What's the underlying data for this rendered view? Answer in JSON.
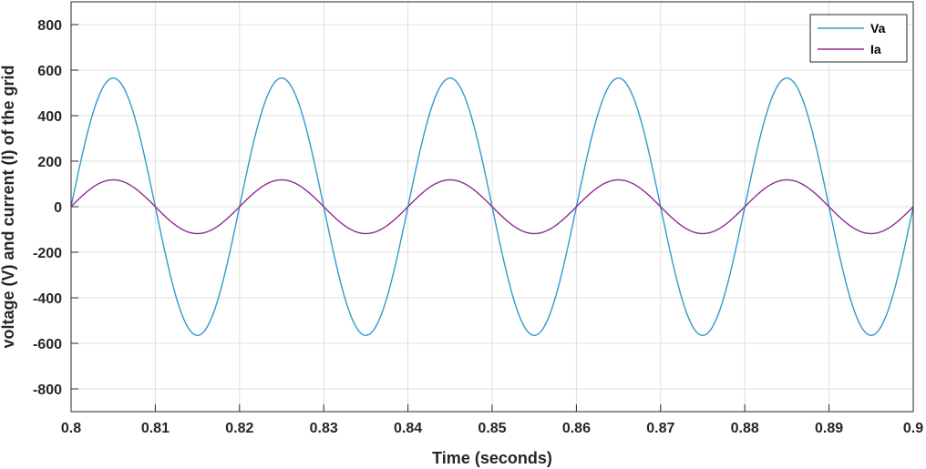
{
  "chart_data": {
    "type": "line",
    "xlabel": "Time (seconds)",
    "ylabel": "voltage (V)  and current  (I) of the grid",
    "xlim": [
      0.8,
      0.9
    ],
    "ylim": [
      -900,
      900
    ],
    "x_ticks": [
      "0.8",
      "0.81",
      "0.82",
      "0.83",
      "0.84",
      "0.85",
      "0.86",
      "0.87",
      "0.88",
      "0.89",
      "0.9"
    ],
    "y_ticks": [
      "800",
      "600",
      "400",
      "200",
      "0",
      "-200",
      "-400",
      "-600",
      "-800"
    ],
    "grid": true,
    "legend_position": "top-right",
    "frequency_hz": 50,
    "series": [
      {
        "name": "Va",
        "amplitude": 565,
        "phase_deg": 0,
        "color": "#3399cc"
      },
      {
        "name": "Ia",
        "amplitude": 118,
        "phase_deg": 0,
        "color": "#8e2c91"
      }
    ]
  }
}
